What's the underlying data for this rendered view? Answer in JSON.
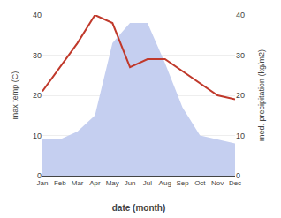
{
  "chart_data": {
    "type": "line",
    "categories": [
      "Jan",
      "Feb",
      "Mar",
      "Apr",
      "May",
      "Jun",
      "Jul",
      "Aug",
      "Sep",
      "Oct",
      "Nov",
      "Dec"
    ],
    "xlabel": "date (month)",
    "ylabel": "max temp (C)",
    "y2label": "med. precipitation (kg/m2)",
    "series": [
      {
        "type": "area",
        "axis": "y2",
        "color": "#c5cff0",
        "values": [
          9,
          9,
          11,
          15,
          33,
          38,
          38,
          28,
          17,
          10,
          9,
          8
        ]
      },
      {
        "type": "line",
        "color": "#c0392b",
        "values": [
          21,
          27,
          33,
          40,
          38,
          27,
          29,
          29,
          26,
          23,
          20,
          19
        ]
      }
    ],
    "ylim": [
      0,
      40
    ],
    "yticks": [
      0,
      10,
      20,
      30,
      40
    ],
    "y2lim": [
      0,
      40
    ],
    "y2ticks": [
      0,
      10,
      20,
      30,
      40
    ],
    "grid": true
  }
}
